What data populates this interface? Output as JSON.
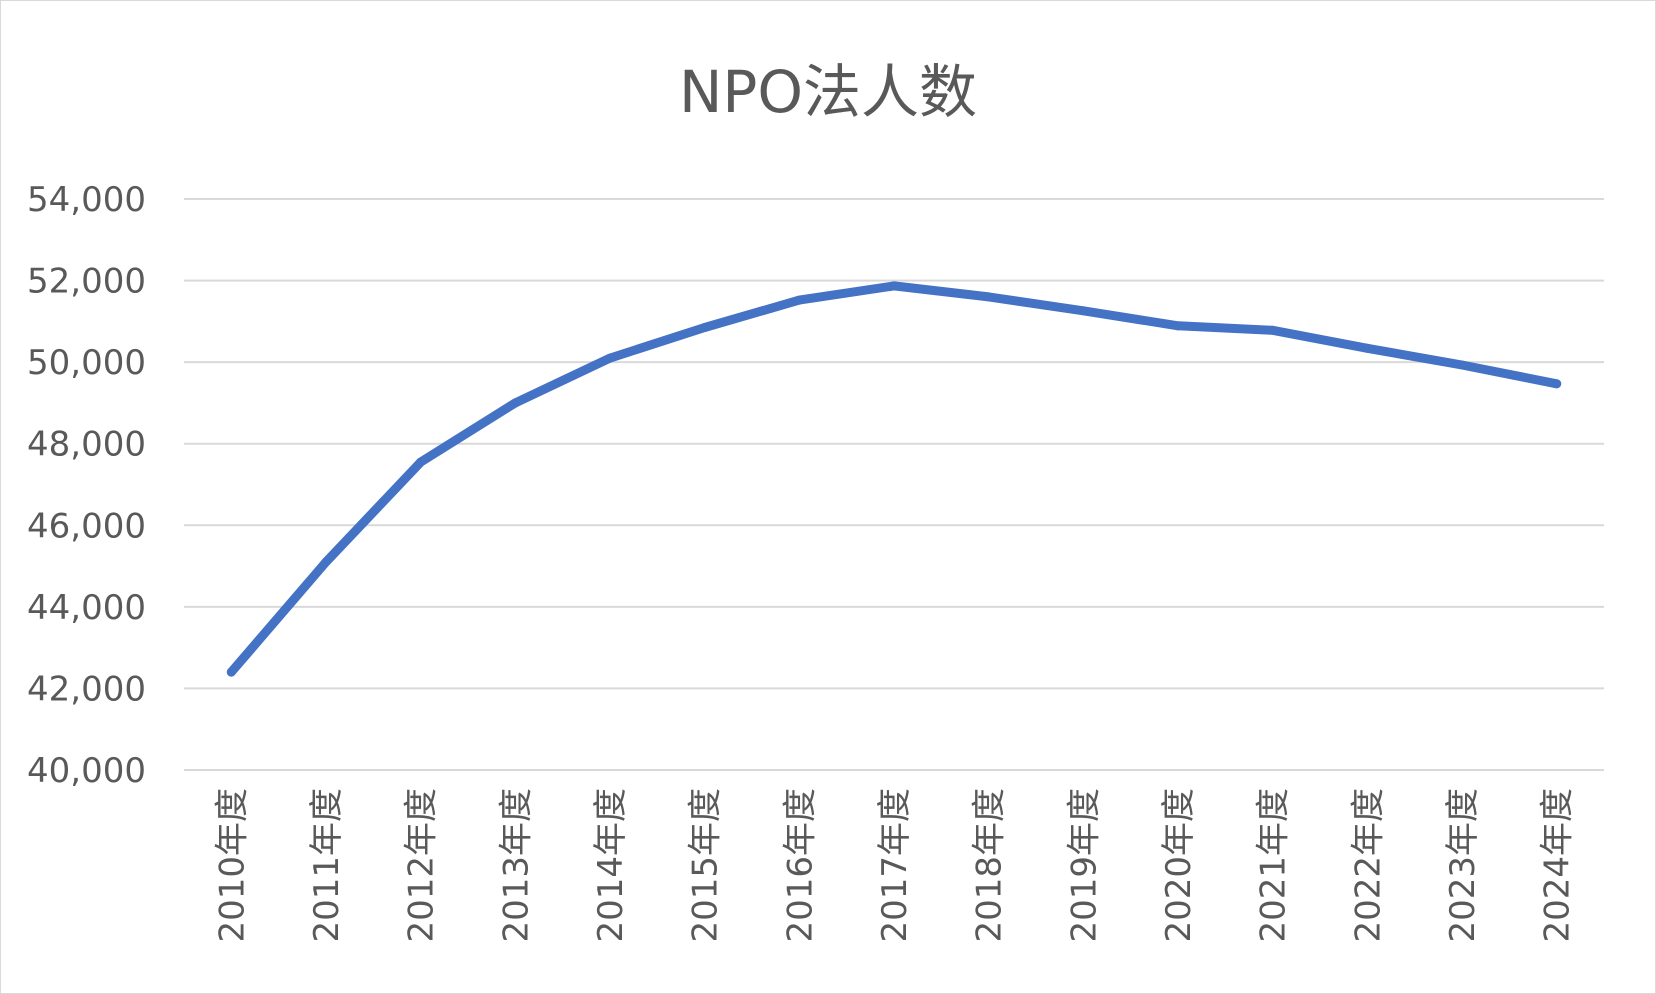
{
  "chart_data": {
    "type": "line",
    "title": "NPO法人数",
    "xlabel": "",
    "ylabel": "",
    "categories": [
      "2010年度",
      "2011年度",
      "2012年度",
      "2013年度",
      "2014年度",
      "2015年度",
      "2016年度",
      "2017年度",
      "2018年度",
      "2019年度",
      "2020年度",
      "2021年度",
      "2022年度",
      "2023年度",
      "2024年度"
    ],
    "series": [
      {
        "values": [
          42400,
          45100,
          47550,
          49000,
          50100,
          50850,
          51520,
          51870,
          51600,
          51260,
          50890,
          50780,
          50340,
          49930,
          49470
        ]
      }
    ],
    "ylim": [
      40000,
      54000
    ],
    "y_ticks": [
      "40,000",
      "42,000",
      "44,000",
      "46,000",
      "48,000",
      "50,000",
      "52,000",
      "54,000"
    ],
    "grid": true,
    "legend": "none",
    "colors": {
      "line": "#4472c4",
      "grid": "#d9d9d9",
      "text": "#595959"
    }
  }
}
